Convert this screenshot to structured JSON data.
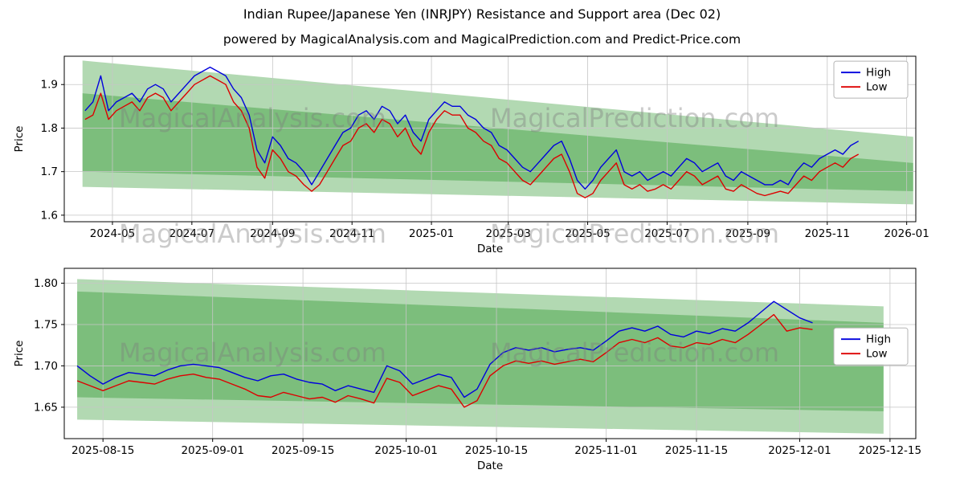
{
  "page": {
    "title": "Indian Rupee/Japanese Yen (INRJPY) Resistance and Support area (Dec 02)",
    "subtitle": "powered by MagicalAnalysis.com and MagicalPrediction.com and Predict-Price.com"
  },
  "watermarks": {
    "left": "MagicalAnalysis.com",
    "right": "MagicalPrediction.com"
  },
  "colors": {
    "high": "#0000dd",
    "low": "#dd0000",
    "band": "#008000",
    "grid": "#c6c6c6",
    "frame": "#000000"
  },
  "chart_data": [
    {
      "type": "line",
      "title": "",
      "xlabel": "Date",
      "ylabel": "Price",
      "grid": true,
      "legend_position": "top-right",
      "ylim": [
        1.585,
        1.965
      ],
      "x_domain": [
        "2024-03-25",
        "2026-01-08"
      ],
      "x_start": "2024-04-10",
      "step_days": 6,
      "yticks": [
        {
          "v": 1.6,
          "label": "1.6"
        },
        {
          "v": 1.7,
          "label": "1.7"
        },
        {
          "v": 1.8,
          "label": "1.8"
        },
        {
          "v": 1.9,
          "label": "1.9"
        }
      ],
      "xticks": [
        {
          "d": "2024-05-01",
          "label": "2024-05"
        },
        {
          "d": "2024-07-01",
          "label": "2024-07"
        },
        {
          "d": "2024-09-01",
          "label": "2024-09"
        },
        {
          "d": "2024-11-01",
          "label": "2024-11"
        },
        {
          "d": "2025-01-01",
          "label": "2025-01"
        },
        {
          "d": "2025-03-01",
          "label": "2025-03"
        },
        {
          "d": "2025-05-01",
          "label": "2025-05"
        },
        {
          "d": "2025-07-01",
          "label": "2025-07"
        },
        {
          "d": "2025-09-01",
          "label": "2025-09"
        },
        {
          "d": "2025-11-01",
          "label": "2025-11"
        },
        {
          "d": "2026-01-01",
          "label": "2026-01"
        }
      ],
      "bands": [
        {
          "x": [
            "2024-04-08",
            "2026-01-06"
          ],
          "upper": [
            1.955,
            1.78
          ],
          "lower": [
            1.7,
            1.655
          ]
        },
        {
          "x": [
            "2024-04-08",
            "2026-01-06"
          ],
          "upper": [
            1.88,
            1.72
          ],
          "lower": [
            1.665,
            1.625
          ]
        }
      ],
      "legend": {
        "y_frac": 0.03
      },
      "series": [
        {
          "name": "High",
          "color": "#0000dd",
          "values": [
            1.84,
            1.86,
            1.92,
            1.84,
            1.86,
            1.87,
            1.88,
            1.86,
            1.89,
            1.9,
            1.89,
            1.86,
            1.88,
            1.9,
            1.92,
            1.93,
            1.94,
            1.93,
            1.92,
            1.89,
            1.87,
            1.83,
            1.75,
            1.72,
            1.78,
            1.76,
            1.73,
            1.72,
            1.7,
            1.67,
            1.7,
            1.73,
            1.76,
            1.79,
            1.8,
            1.83,
            1.84,
            1.82,
            1.85,
            1.84,
            1.81,
            1.83,
            1.79,
            1.77,
            1.82,
            1.84,
            1.86,
            1.85,
            1.85,
            1.83,
            1.82,
            1.8,
            1.79,
            1.76,
            1.75,
            1.73,
            1.71,
            1.7,
            1.72,
            1.74,
            1.76,
            1.77,
            1.73,
            1.68,
            1.66,
            1.68,
            1.71,
            1.73,
            1.75,
            1.7,
            1.69,
            1.7,
            1.68,
            1.69,
            1.7,
            1.69,
            1.71,
            1.73,
            1.72,
            1.7,
            1.71,
            1.72,
            1.69,
            1.68,
            1.7,
            1.69,
            1.68,
            1.67,
            1.67,
            1.68,
            1.67,
            1.7,
            1.72,
            1.71,
            1.73,
            1.74,
            1.75,
            1.74,
            1.76,
            1.77
          ]
        },
        {
          "name": "Low",
          "color": "#dd0000",
          "values": [
            1.82,
            1.83,
            1.88,
            1.82,
            1.84,
            1.85,
            1.86,
            1.84,
            1.87,
            1.88,
            1.87,
            1.84,
            1.86,
            1.88,
            1.9,
            1.91,
            1.92,
            1.91,
            1.9,
            1.86,
            1.84,
            1.8,
            1.71,
            1.685,
            1.75,
            1.73,
            1.7,
            1.69,
            1.67,
            1.655,
            1.67,
            1.7,
            1.73,
            1.76,
            1.77,
            1.8,
            1.81,
            1.79,
            1.82,
            1.81,
            1.78,
            1.8,
            1.76,
            1.74,
            1.79,
            1.82,
            1.84,
            1.83,
            1.83,
            1.8,
            1.79,
            1.77,
            1.76,
            1.73,
            1.72,
            1.7,
            1.68,
            1.67,
            1.69,
            1.71,
            1.73,
            1.74,
            1.7,
            1.65,
            1.64,
            1.65,
            1.68,
            1.7,
            1.72,
            1.67,
            1.66,
            1.67,
            1.655,
            1.66,
            1.67,
            1.66,
            1.68,
            1.7,
            1.69,
            1.67,
            1.68,
            1.69,
            1.66,
            1.655,
            1.67,
            1.66,
            1.65,
            1.645,
            1.65,
            1.655,
            1.65,
            1.67,
            1.69,
            1.68,
            1.7,
            1.71,
            1.72,
            1.71,
            1.73,
            1.74
          ]
        }
      ]
    },
    {
      "type": "line",
      "title": "",
      "xlabel": "Date",
      "ylabel": "Price",
      "grid": true,
      "legend_position": "right",
      "ylim": [
        1.612,
        1.818
      ],
      "x_domain": [
        "2025-08-09",
        "2025-12-19"
      ],
      "x_start": "2025-08-11",
      "step_days": 2,
      "yticks": [
        {
          "v": 1.65,
          "label": "1.65"
        },
        {
          "v": 1.7,
          "label": "1.70"
        },
        {
          "v": 1.75,
          "label": "1.75"
        },
        {
          "v": 1.8,
          "label": "1.80"
        }
      ],
      "xticks": [
        {
          "d": "2025-08-15",
          "label": "2025-08-15"
        },
        {
          "d": "2025-09-01",
          "label": "2025-09-01"
        },
        {
          "d": "2025-09-15",
          "label": "2025-09-15"
        },
        {
          "d": "2025-10-01",
          "label": "2025-10-01"
        },
        {
          "d": "2025-10-15",
          "label": "2025-10-15"
        },
        {
          "d": "2025-11-01",
          "label": "2025-11-01"
        },
        {
          "d": "2025-11-15",
          "label": "2025-11-15"
        },
        {
          "d": "2025-12-01",
          "label": "2025-12-01"
        },
        {
          "d": "2025-12-15",
          "label": "2025-12-15"
        }
      ],
      "bands": [
        {
          "x": [
            "2025-08-11",
            "2025-12-14"
          ],
          "upper": [
            1.805,
            1.772
          ],
          "lower": [
            1.662,
            1.645
          ]
        },
        {
          "x": [
            "2025-08-11",
            "2025-12-14"
          ],
          "upper": [
            1.79,
            1.752
          ],
          "lower": [
            1.635,
            1.618
          ]
        }
      ],
      "legend": {
        "y_frac": 0.35
      },
      "series": [
        {
          "name": "High",
          "color": "#0000dd",
          "values": [
            1.7,
            1.688,
            1.678,
            1.686,
            1.692,
            1.69,
            1.688,
            1.695,
            1.7,
            1.702,
            1.7,
            1.698,
            1.692,
            1.686,
            1.682,
            1.688,
            1.69,
            1.684,
            1.68,
            1.678,
            1.67,
            1.676,
            1.672,
            1.668,
            1.7,
            1.694,
            1.678,
            1.684,
            1.69,
            1.686,
            1.662,
            1.672,
            1.702,
            1.716,
            1.722,
            1.719,
            1.722,
            1.717,
            1.72,
            1.722,
            1.719,
            1.73,
            1.742,
            1.746,
            1.742,
            1.748,
            1.738,
            1.735,
            1.742,
            1.739,
            1.745,
            1.742,
            1.752,
            1.765,
            1.778,
            1.768,
            1.758,
            1.752
          ]
        },
        {
          "name": "Low",
          "color": "#dd0000",
          "values": [
            1.682,
            1.676,
            1.67,
            1.676,
            1.682,
            1.68,
            1.678,
            1.684,
            1.688,
            1.69,
            1.686,
            1.684,
            1.678,
            1.672,
            1.664,
            1.662,
            1.668,
            1.664,
            1.66,
            1.662,
            1.656,
            1.664,
            1.66,
            1.655,
            1.685,
            1.68,
            1.664,
            1.67,
            1.676,
            1.672,
            1.65,
            1.658,
            1.688,
            1.7,
            1.706,
            1.703,
            1.706,
            1.702,
            1.705,
            1.708,
            1.705,
            1.716,
            1.728,
            1.732,
            1.728,
            1.734,
            1.724,
            1.722,
            1.728,
            1.726,
            1.732,
            1.728,
            1.738,
            1.75,
            1.762,
            1.742,
            1.746,
            1.744
          ]
        }
      ]
    }
  ]
}
